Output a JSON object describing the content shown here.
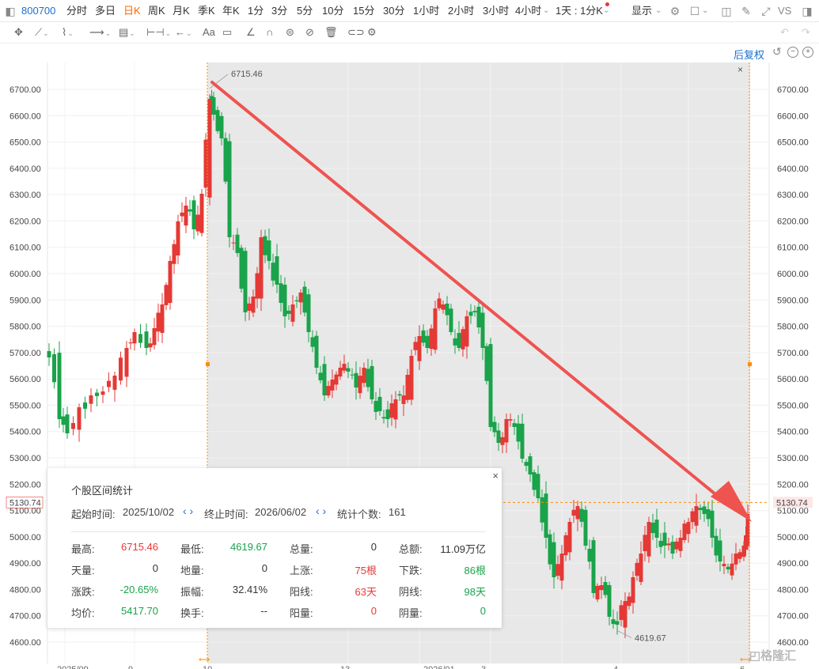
{
  "topbar": {
    "symbol": "800700",
    "periods": [
      "分时",
      "多日",
      "日K",
      "周K",
      "月K",
      "季K",
      "年K",
      "1分",
      "3分",
      "5分",
      "10分",
      "15分",
      "30分",
      "1小时",
      "2小时",
      "3小时",
      "4小时"
    ],
    "active_period": "日K",
    "combo": "1天 : 1分K",
    "display": "显示",
    "vs": "VS"
  },
  "subbar": {
    "adjust": "后复权"
  },
  "chart": {
    "y_ticks": [
      "6700.00",
      "6600.00",
      "6500.00",
      "6400.00",
      "6300.00",
      "6200.00",
      "6100.00",
      "6000.00",
      "5900.00",
      "5800.00",
      "5700.00",
      "5600.00",
      "5500.00",
      "5400.00",
      "5300.00",
      "5200.00",
      "5100.00",
      "5000.00",
      "4900.00",
      "4800.00",
      "4700.00",
      "4600.00"
    ],
    "current_price": "5130.74",
    "high_label": "6715.46",
    "low_label": "4619.67",
    "x_labels": [
      "2025/09",
      "9",
      "10",
      "13",
      "2026/01",
      "3",
      "4",
      "6"
    ],
    "colors": {
      "up": "#e53935",
      "down": "#1aa34a",
      "arrow": "#ef5350",
      "selection": "#e8e8e8",
      "marker": "#ff8c00"
    }
  },
  "stats": {
    "title": "个股区间统计",
    "close": "×",
    "start_label": "起始时间:",
    "start": "2025/10/02",
    "end_label": "终止时间:",
    "end": "2026/06/02",
    "count_label": "统计个数:",
    "count": "161",
    "rows": [
      [
        [
          "最高:",
          "6715.46",
          "red"
        ],
        [
          "最低:",
          "4619.67",
          "green"
        ],
        [
          "总量:",
          "0",
          "dark"
        ],
        [
          "总额:",
          "11.09万亿",
          "dark"
        ]
      ],
      [
        [
          "天量:",
          "0",
          "dark"
        ],
        [
          "地量:",
          "0",
          "dark"
        ],
        [
          "上涨:",
          "75根",
          "red"
        ],
        [
          "下跌:",
          "86根",
          "green"
        ]
      ],
      [
        [
          "涨跌:",
          "-20.65%",
          "green"
        ],
        [
          "振幅:",
          "32.41%",
          "dark"
        ],
        [
          "阳线:",
          "63天",
          "red"
        ],
        [
          "阴线:",
          "98天",
          "green"
        ]
      ],
      [
        [
          "均价:",
          "5417.70",
          "green"
        ],
        [
          "换手:",
          "--",
          "dark"
        ],
        [
          "阳量:",
          "0",
          "red"
        ],
        [
          "阴量:",
          "0",
          "green"
        ]
      ]
    ]
  }
}
